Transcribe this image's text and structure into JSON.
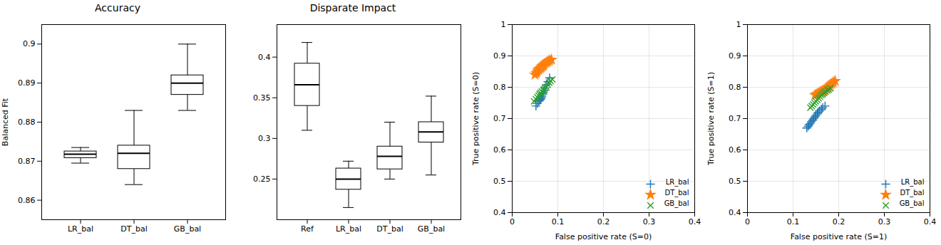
{
  "chart_data": [
    {
      "type": "box",
      "title": "Accuracy",
      "ylabel": "Balanced Fit",
      "categories": [
        "LR_bal",
        "DT_bal",
        "GB_bal"
      ],
      "boxes": [
        {
          "whislo": 0.8695,
          "q1": 0.8708,
          "med": 0.8718,
          "q3": 0.8725,
          "whishi": 0.8735
        },
        {
          "whislo": 0.864,
          "q1": 0.868,
          "med": 0.872,
          "q3": 0.874,
          "whishi": 0.883
        },
        {
          "whislo": 0.883,
          "q1": 0.887,
          "med": 0.89,
          "q3": 0.892,
          "whishi": 0.9
        }
      ],
      "ylim": [
        0.855,
        0.905
      ],
      "yticks": [
        0.86,
        0.87,
        0.88,
        0.89,
        0.9
      ]
    },
    {
      "type": "box",
      "title": "Disparate Impact",
      "categories": [
        "Ref",
        "LR_bal",
        "DT_bal",
        "GB_bal"
      ],
      "boxes": [
        {
          "whislo": 0.31,
          "q1": 0.34,
          "med": 0.366,
          "q3": 0.392,
          "whishi": 0.418
        },
        {
          "whislo": 0.215,
          "q1": 0.237,
          "med": 0.25,
          "q3": 0.263,
          "whishi": 0.272
        },
        {
          "whislo": 0.25,
          "q1": 0.262,
          "med": 0.278,
          "q3": 0.29,
          "whishi": 0.32
        },
        {
          "whislo": 0.255,
          "q1": 0.295,
          "med": 0.308,
          "q3": 0.32,
          "whishi": 0.352
        }
      ],
      "ylim": [
        0.2,
        0.44
      ],
      "yticks": [
        0.25,
        0.3,
        0.35,
        0.4
      ]
    },
    {
      "type": "scatter",
      "xlabel": "False positive rate (S=0)",
      "ylabel": "True positive rate (S=0)",
      "xlim": [
        0.0,
        0.4
      ],
      "ylim": [
        0.4,
        1.0
      ],
      "xticks": [
        0.0,
        0.1,
        0.2,
        0.3,
        0.4
      ],
      "yticks": [
        0.4,
        0.5,
        0.6,
        0.7,
        0.8,
        0.9,
        1.0
      ],
      "grid": true,
      "legend": "lower right",
      "series": [
        {
          "name": "LR_bal",
          "color": "#1f77b4",
          "marker": "plus",
          "x": [
            0.052,
            0.055,
            0.058,
            0.06,
            0.062,
            0.063,
            0.064,
            0.065,
            0.067,
            0.068,
            0.07,
            0.072,
            0.075,
            0.078,
            0.082
          ],
          "values": [
            0.74,
            0.748,
            0.755,
            0.758,
            0.761,
            0.764,
            0.768,
            0.772,
            0.778,
            0.782,
            0.79,
            0.798,
            0.808,
            0.818,
            0.83
          ]
        },
        {
          "name": "DT_bal",
          "color": "#ff7f0e",
          "marker": "star",
          "x": [
            0.05,
            0.053,
            0.055,
            0.057,
            0.059,
            0.062,
            0.064,
            0.066,
            0.068,
            0.07,
            0.073,
            0.076,
            0.079,
            0.082,
            0.086
          ],
          "values": [
            0.84,
            0.845,
            0.85,
            0.855,
            0.858,
            0.861,
            0.864,
            0.867,
            0.87,
            0.873,
            0.877,
            0.88,
            0.883,
            0.886,
            0.888
          ]
        },
        {
          "name": "GB_bal",
          "color": "#2ca02c",
          "marker": "times",
          "x": [
            0.048,
            0.052,
            0.055,
            0.058,
            0.06,
            0.062,
            0.065,
            0.068,
            0.07,
            0.072,
            0.075,
            0.078,
            0.081,
            0.084,
            0.088
          ],
          "values": [
            0.755,
            0.762,
            0.768,
            0.773,
            0.778,
            0.782,
            0.786,
            0.79,
            0.793,
            0.797,
            0.8,
            0.808,
            0.815,
            0.82,
            0.825
          ]
        }
      ]
    },
    {
      "type": "scatter",
      "xlabel": "False positive rate (S=1)",
      "ylabel": "True positive rate (S=1)",
      "xlim": [
        0.0,
        0.4
      ],
      "ylim": [
        0.4,
        1.0
      ],
      "xticks": [
        0.0,
        0.1,
        0.2,
        0.3,
        0.4
      ],
      "yticks": [
        0.4,
        0.5,
        0.6,
        0.7,
        0.8,
        0.9,
        1.0
      ],
      "grid": true,
      "legend": "lower right",
      "series": [
        {
          "name": "LR_bal",
          "color": "#1f77b4",
          "marker": "plus",
          "x": [
            0.13,
            0.133,
            0.135,
            0.138,
            0.14,
            0.143,
            0.145,
            0.148,
            0.15,
            0.153,
            0.155,
            0.158,
            0.162,
            0.165,
            0.17
          ],
          "values": [
            0.67,
            0.675,
            0.68,
            0.685,
            0.69,
            0.695,
            0.7,
            0.705,
            0.71,
            0.715,
            0.72,
            0.725,
            0.73,
            0.735,
            0.74
          ]
        },
        {
          "name": "DT_bal",
          "color": "#ff7f0e",
          "marker": "star",
          "x": [
            0.148,
            0.152,
            0.155,
            0.158,
            0.161,
            0.164,
            0.167,
            0.17,
            0.173,
            0.176,
            0.179,
            0.182,
            0.185,
            0.188,
            0.192
          ],
          "values": [
            0.775,
            0.778,
            0.78,
            0.783,
            0.786,
            0.788,
            0.79,
            0.793,
            0.796,
            0.799,
            0.802,
            0.808,
            0.812,
            0.816,
            0.82
          ]
        },
        {
          "name": "GB_bal",
          "color": "#2ca02c",
          "marker": "times",
          "x": [
            0.138,
            0.141,
            0.144,
            0.147,
            0.15,
            0.153,
            0.156,
            0.159,
            0.162,
            0.165,
            0.168,
            0.171,
            0.175,
            0.178,
            0.182
          ],
          "values": [
            0.735,
            0.74,
            0.745,
            0.75,
            0.755,
            0.76,
            0.765,
            0.77,
            0.775,
            0.778,
            0.782,
            0.786,
            0.79,
            0.793,
            0.797
          ]
        }
      ]
    }
  ]
}
